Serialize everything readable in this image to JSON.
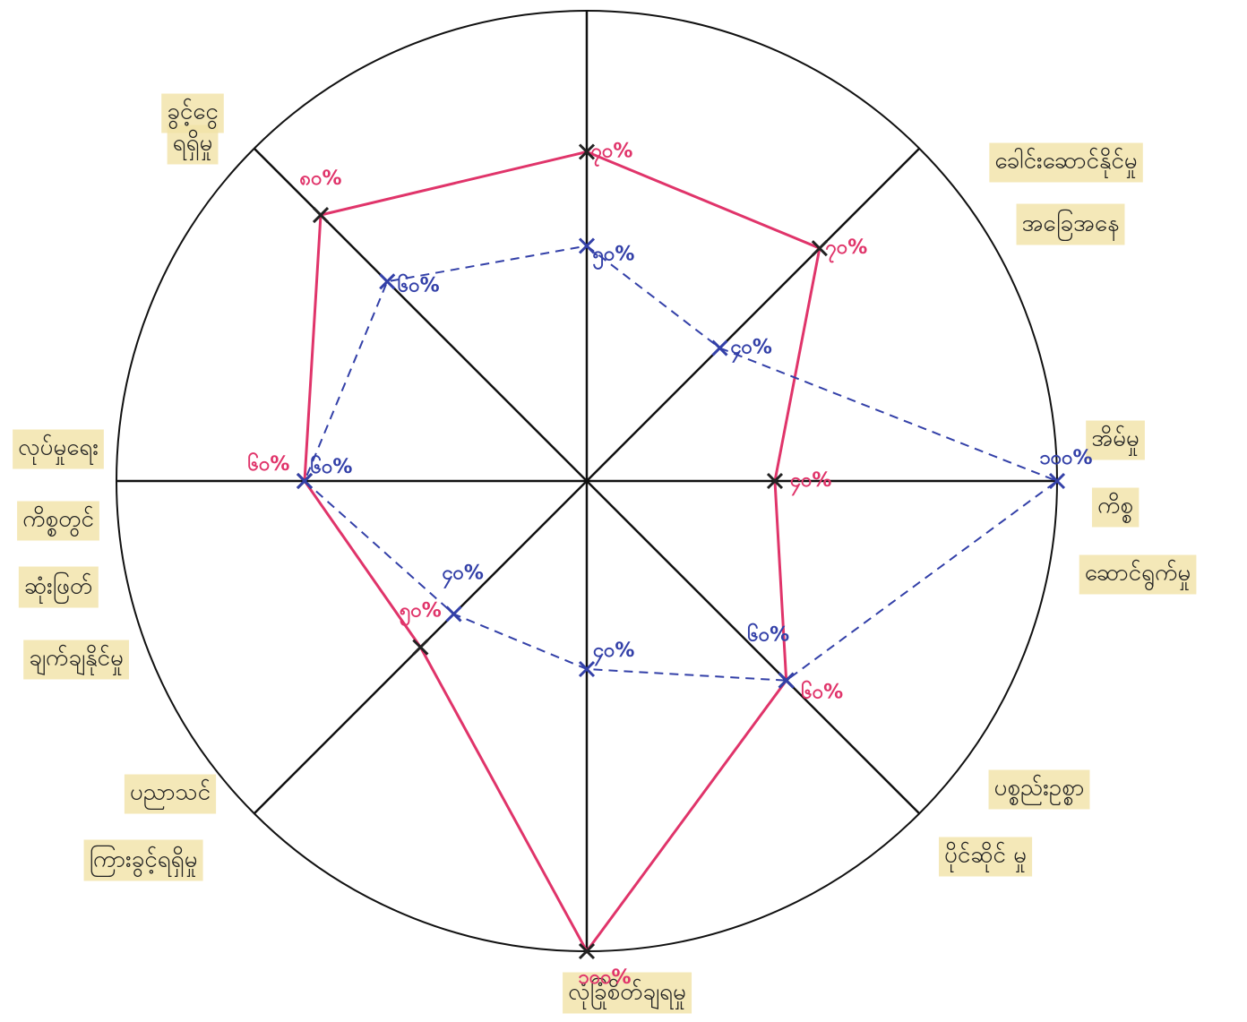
{
  "chart_data": {
    "type": "radar",
    "categories": [
      null,
      [
        "ခေါင်းဆောင်နိုင်မှု",
        "အခြေအနေ"
      ],
      [
        "အိမ်မှု",
        "ကိစ္စ",
        "ဆောင်ရွက်မှု"
      ],
      [
        "ပစ္စည်းဥစ္စာ",
        "ပိုင်ဆိုင် မှု"
      ],
      [
        "လုံခြုံစိတ်ချရမှု"
      ],
      [
        "ပညာသင်",
        "ကြားခွင့်ရရှိမှု"
      ],
      [
        "လုပ်မှုရေး",
        "ကိစ္စတွင်",
        "ဆုံးဖြတ်",
        "ချက်ချနိုင်မှု"
      ],
      [
        "ခွင့်ငွေ",
        "ရရှိမှု"
      ]
    ],
    "rlim": [
      0,
      100
    ],
    "series": [
      {
        "color": "#e0346a",
        "dashed": false,
        "values": [
          70,
          70,
          40,
          60,
          100,
          50,
          60,
          80
        ],
        "value_labels": [
          "၇၀%",
          "၇၀%",
          "၄၀%",
          "၆၀%",
          "၁၀၀%",
          "၅၀%",
          "၆၀%",
          "၈၀%"
        ]
      },
      {
        "color": "#3340a8",
        "dashed": true,
        "values": [
          50,
          40,
          100,
          60,
          40,
          40,
          60,
          60
        ],
        "value_labels": [
          "၅၀%",
          "၄၀%",
          "၁၀၀%",
          "၆၀%",
          "၄၀%",
          "၄၀%",
          "၆၀%",
          "၆၀%"
        ]
      }
    ]
  }
}
